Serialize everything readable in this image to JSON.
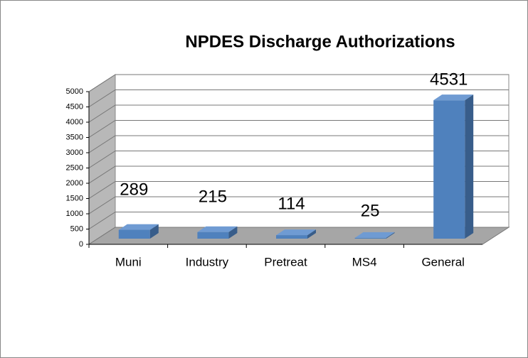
{
  "chart_data": {
    "type": "bar3d",
    "title": "NPDES Discharge Authorizations",
    "categories": [
      "Muni",
      "Industry",
      "Pretreat",
      "MS4",
      "General"
    ],
    "values": [
      289,
      215,
      114,
      25,
      4531
    ],
    "color": "#4f81bd",
    "ylim": [
      0,
      5000
    ],
    "yticks": [
      0,
      500,
      1000,
      1500,
      2000,
      2500,
      3000,
      3500,
      4000,
      4500,
      5000
    ],
    "grid": true
  }
}
